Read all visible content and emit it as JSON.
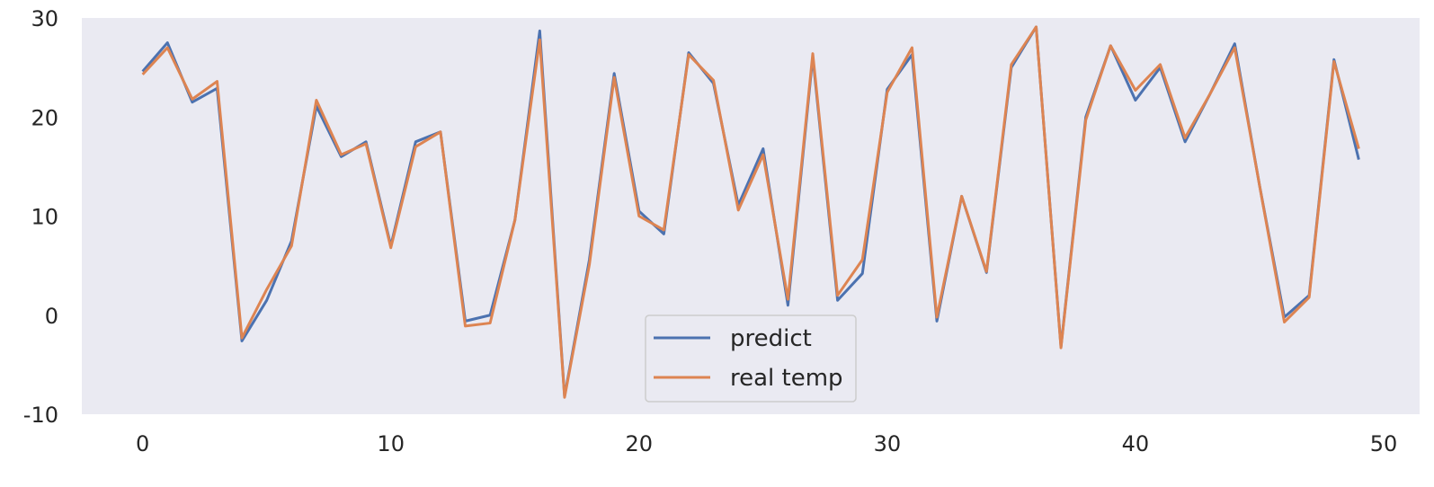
{
  "chart_data": {
    "type": "line",
    "title": "",
    "xlabel": "",
    "ylabel": "",
    "xlim": [
      -2.45,
      51.45
    ],
    "ylim": [
      -10,
      30
    ],
    "grid": false,
    "legend_position": "lower center",
    "x_ticks": [
      0,
      10,
      20,
      30,
      40,
      50
    ],
    "x_tick_labels": [
      "0",
      "10",
      "20",
      "30",
      "40",
      "50"
    ],
    "y_ticks": [
      -10,
      0,
      10,
      20,
      30
    ],
    "y_tick_labels": [
      "-10",
      "0",
      "10",
      "20",
      "30"
    ],
    "x": [
      0,
      1,
      2,
      3,
      4,
      5,
      6,
      7,
      8,
      9,
      10,
      11,
      12,
      13,
      14,
      15,
      16,
      17,
      18,
      19,
      20,
      21,
      22,
      23,
      24,
      25,
      26,
      27,
      28,
      29,
      30,
      31,
      32,
      33,
      34,
      35,
      36,
      37,
      38,
      39,
      40,
      41,
      42,
      43,
      44,
      45,
      46,
      47,
      48,
      49
    ],
    "series": [
      {
        "name": "predict",
        "color": "#4c72b0",
        "values": [
          24.6,
          27.5,
          21.5,
          22.9,
          -2.6,
          1.5,
          7.5,
          21.1,
          16.0,
          17.5,
          7.0,
          17.5,
          18.5,
          -0.6,
          0.0,
          9.6,
          28.7,
          -8.2,
          5.6,
          24.4,
          10.5,
          8.2,
          26.5,
          23.4,
          11.1,
          16.8,
          1.0,
          26.1,
          1.5,
          4.2,
          22.8,
          26.3,
          -0.6,
          12.0,
          4.3,
          25.0,
          29.1,
          -3.2,
          20.0,
          27.2,
          21.7,
          25.0,
          17.5,
          22.3,
          27.4,
          13.1,
          -0.2,
          2.0,
          25.8,
          15.7
        ]
      },
      {
        "name": "real temp",
        "color": "#dd8452",
        "values": [
          24.3,
          27.0,
          21.8,
          23.6,
          -2.3,
          2.6,
          7.0,
          21.7,
          16.2,
          17.3,
          6.8,
          17.0,
          18.5,
          -1.1,
          -0.8,
          9.6,
          27.8,
          -8.3,
          5.1,
          24.0,
          10.0,
          8.6,
          26.3,
          23.7,
          10.6,
          16.2,
          1.6,
          26.4,
          2.0,
          5.6,
          22.5,
          27.0,
          -0.2,
          12.0,
          4.4,
          25.3,
          29.1,
          -3.3,
          19.7,
          27.2,
          22.7,
          25.3,
          17.9,
          22.3,
          27.0,
          13.1,
          -0.7,
          1.8,
          25.6,
          16.8
        ]
      }
    ]
  }
}
